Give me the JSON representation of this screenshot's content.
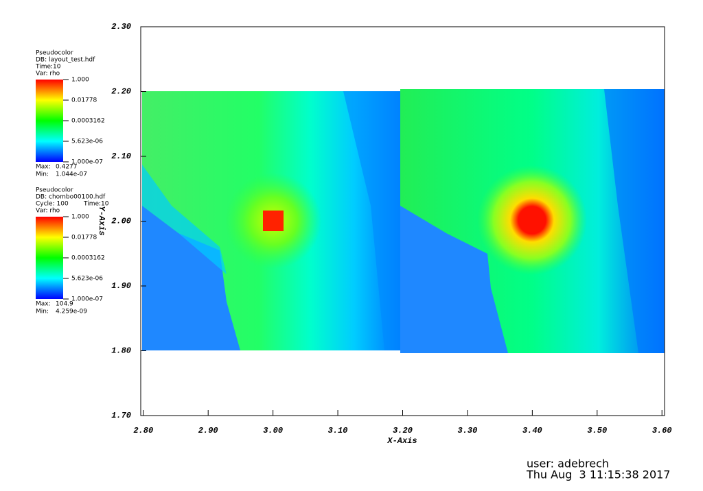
{
  "chart_data": {
    "type": "pseudocolor",
    "xlabel": "X-Axis",
    "ylabel": "Y-Axis",
    "xlim": [
      2.796,
      3.604
    ],
    "ylim": [
      1.7,
      2.3
    ],
    "xticks": [
      {
        "value": 2.8,
        "label": "2.80"
      },
      {
        "value": 2.9,
        "label": "2.90"
      },
      {
        "value": 3.0,
        "label": "3.00"
      },
      {
        "value": 3.1,
        "label": "3.10"
      },
      {
        "value": 3.2,
        "label": "3.20"
      },
      {
        "value": 3.3,
        "label": "3.30"
      },
      {
        "value": 3.4,
        "label": "3.40"
      },
      {
        "value": 3.5,
        "label": "3.50"
      },
      {
        "value": 3.6,
        "label": "3.60"
      }
    ],
    "yticks": [
      {
        "value": 1.7,
        "label": "1.70"
      },
      {
        "value": 1.8,
        "label": "1.80"
      },
      {
        "value": 1.9,
        "label": "1.90"
      },
      {
        "value": 2.0,
        "label": "2.00"
      },
      {
        "value": 2.1,
        "label": "2.10"
      },
      {
        "value": 2.2,
        "label": "2.20"
      },
      {
        "value": 2.3,
        "label": "2.30"
      }
    ],
    "legends": [
      {
        "plot": "Pseudocolor",
        "db": "DB: layout_test.hdf",
        "time": "Time:10",
        "var": "Var: rho",
        "log": true,
        "clim": [
          1e-07,
          1
        ],
        "ticks": [
          {
            "value": 1,
            "label": "1.000"
          },
          {
            "value": 0.01778,
            "label": "0.01778"
          },
          {
            "value": 0.0003162,
            "label": "0.0003162"
          },
          {
            "value": 5.623e-06,
            "label": "5.623e-06"
          },
          {
            "value": 1e-07,
            "label": "1.000e-07"
          }
        ],
        "max_label": "Max:",
        "max": 0.4277,
        "min_label": "Min:",
        "min": {
          "value": 1.044e-07,
          "label": "1.044e-07"
        }
      },
      {
        "plot": "Pseudocolor",
        "db": "DB: chombo00100.hdf",
        "cycle": "Cycle: 100",
        "time": "Time:10",
        "var": "Var: rho",
        "log": true,
        "clim": [
          1e-07,
          1
        ],
        "ticks": [
          {
            "value": 1,
            "label": "1.000"
          },
          {
            "value": 0.01778,
            "label": "0.01778"
          },
          {
            "value": 0.0003162,
            "label": "0.0003162"
          },
          {
            "value": 5.623e-06,
            "label": "5.623e-06"
          },
          {
            "value": 1e-07,
            "label": "1.000e-07"
          }
        ],
        "max_label": "Max:",
        "max": 104.9,
        "min_label": "Min:",
        "min": {
          "value": 4.259e-09,
          "label": "4.259e-09"
        }
      }
    ],
    "user": "user: adebrech",
    "date": "Thu Aug  3 11:15:38 2017"
  }
}
